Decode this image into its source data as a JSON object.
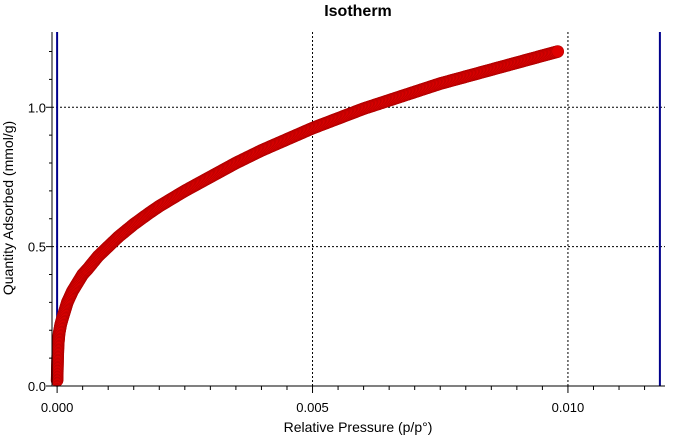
{
  "chart_data": {
    "type": "scatter",
    "title": "Isotherm",
    "xlabel": "Relative Pressure (p/p°)",
    "ylabel": "Quantity Adsorbed (mmol/g)",
    "xlim": [
      -0.0001,
      0.0119
    ],
    "ylim": [
      0,
      1.27
    ],
    "xticks": [
      0.0,
      0.005,
      0.01
    ],
    "xtick_labels": [
      "0.000",
      "0.005",
      "0.010"
    ],
    "yticks": [
      0.0,
      0.5,
      1.0
    ],
    "ytick_labels": [
      "0.0",
      "0.5",
      "1.0"
    ],
    "grid": true,
    "vertical_markers": [
      0.0,
      0.0118
    ],
    "colors": {
      "series": "#e00000",
      "marker_lines": "#00008b",
      "grid": "#000000"
    },
    "series": [
      {
        "x": [
          0.0,
          1e-05,
          2e-05,
          4e-05,
          7e-05,
          0.0001,
          0.00015,
          0.0002,
          0.0003,
          0.0004,
          0.0005,
          0.0006,
          0.0008,
          0.001,
          0.0012,
          0.0015,
          0.0018,
          0.002,
          0.0025,
          0.003,
          0.0035,
          0.004,
          0.0045,
          0.005,
          0.0055,
          0.006,
          0.0065,
          0.007,
          0.0075,
          0.008,
          0.0085,
          0.009,
          0.0095,
          0.0098
        ],
        "y": [
          0.02,
          0.1,
          0.15,
          0.19,
          0.22,
          0.24,
          0.27,
          0.3,
          0.34,
          0.37,
          0.4,
          0.42,
          0.465,
          0.5,
          0.535,
          0.58,
          0.62,
          0.645,
          0.7,
          0.75,
          0.8,
          0.845,
          0.885,
          0.925,
          0.96,
          0.995,
          1.025,
          1.055,
          1.085,
          1.11,
          1.135,
          1.16,
          1.185,
          1.2
        ]
      }
    ]
  }
}
